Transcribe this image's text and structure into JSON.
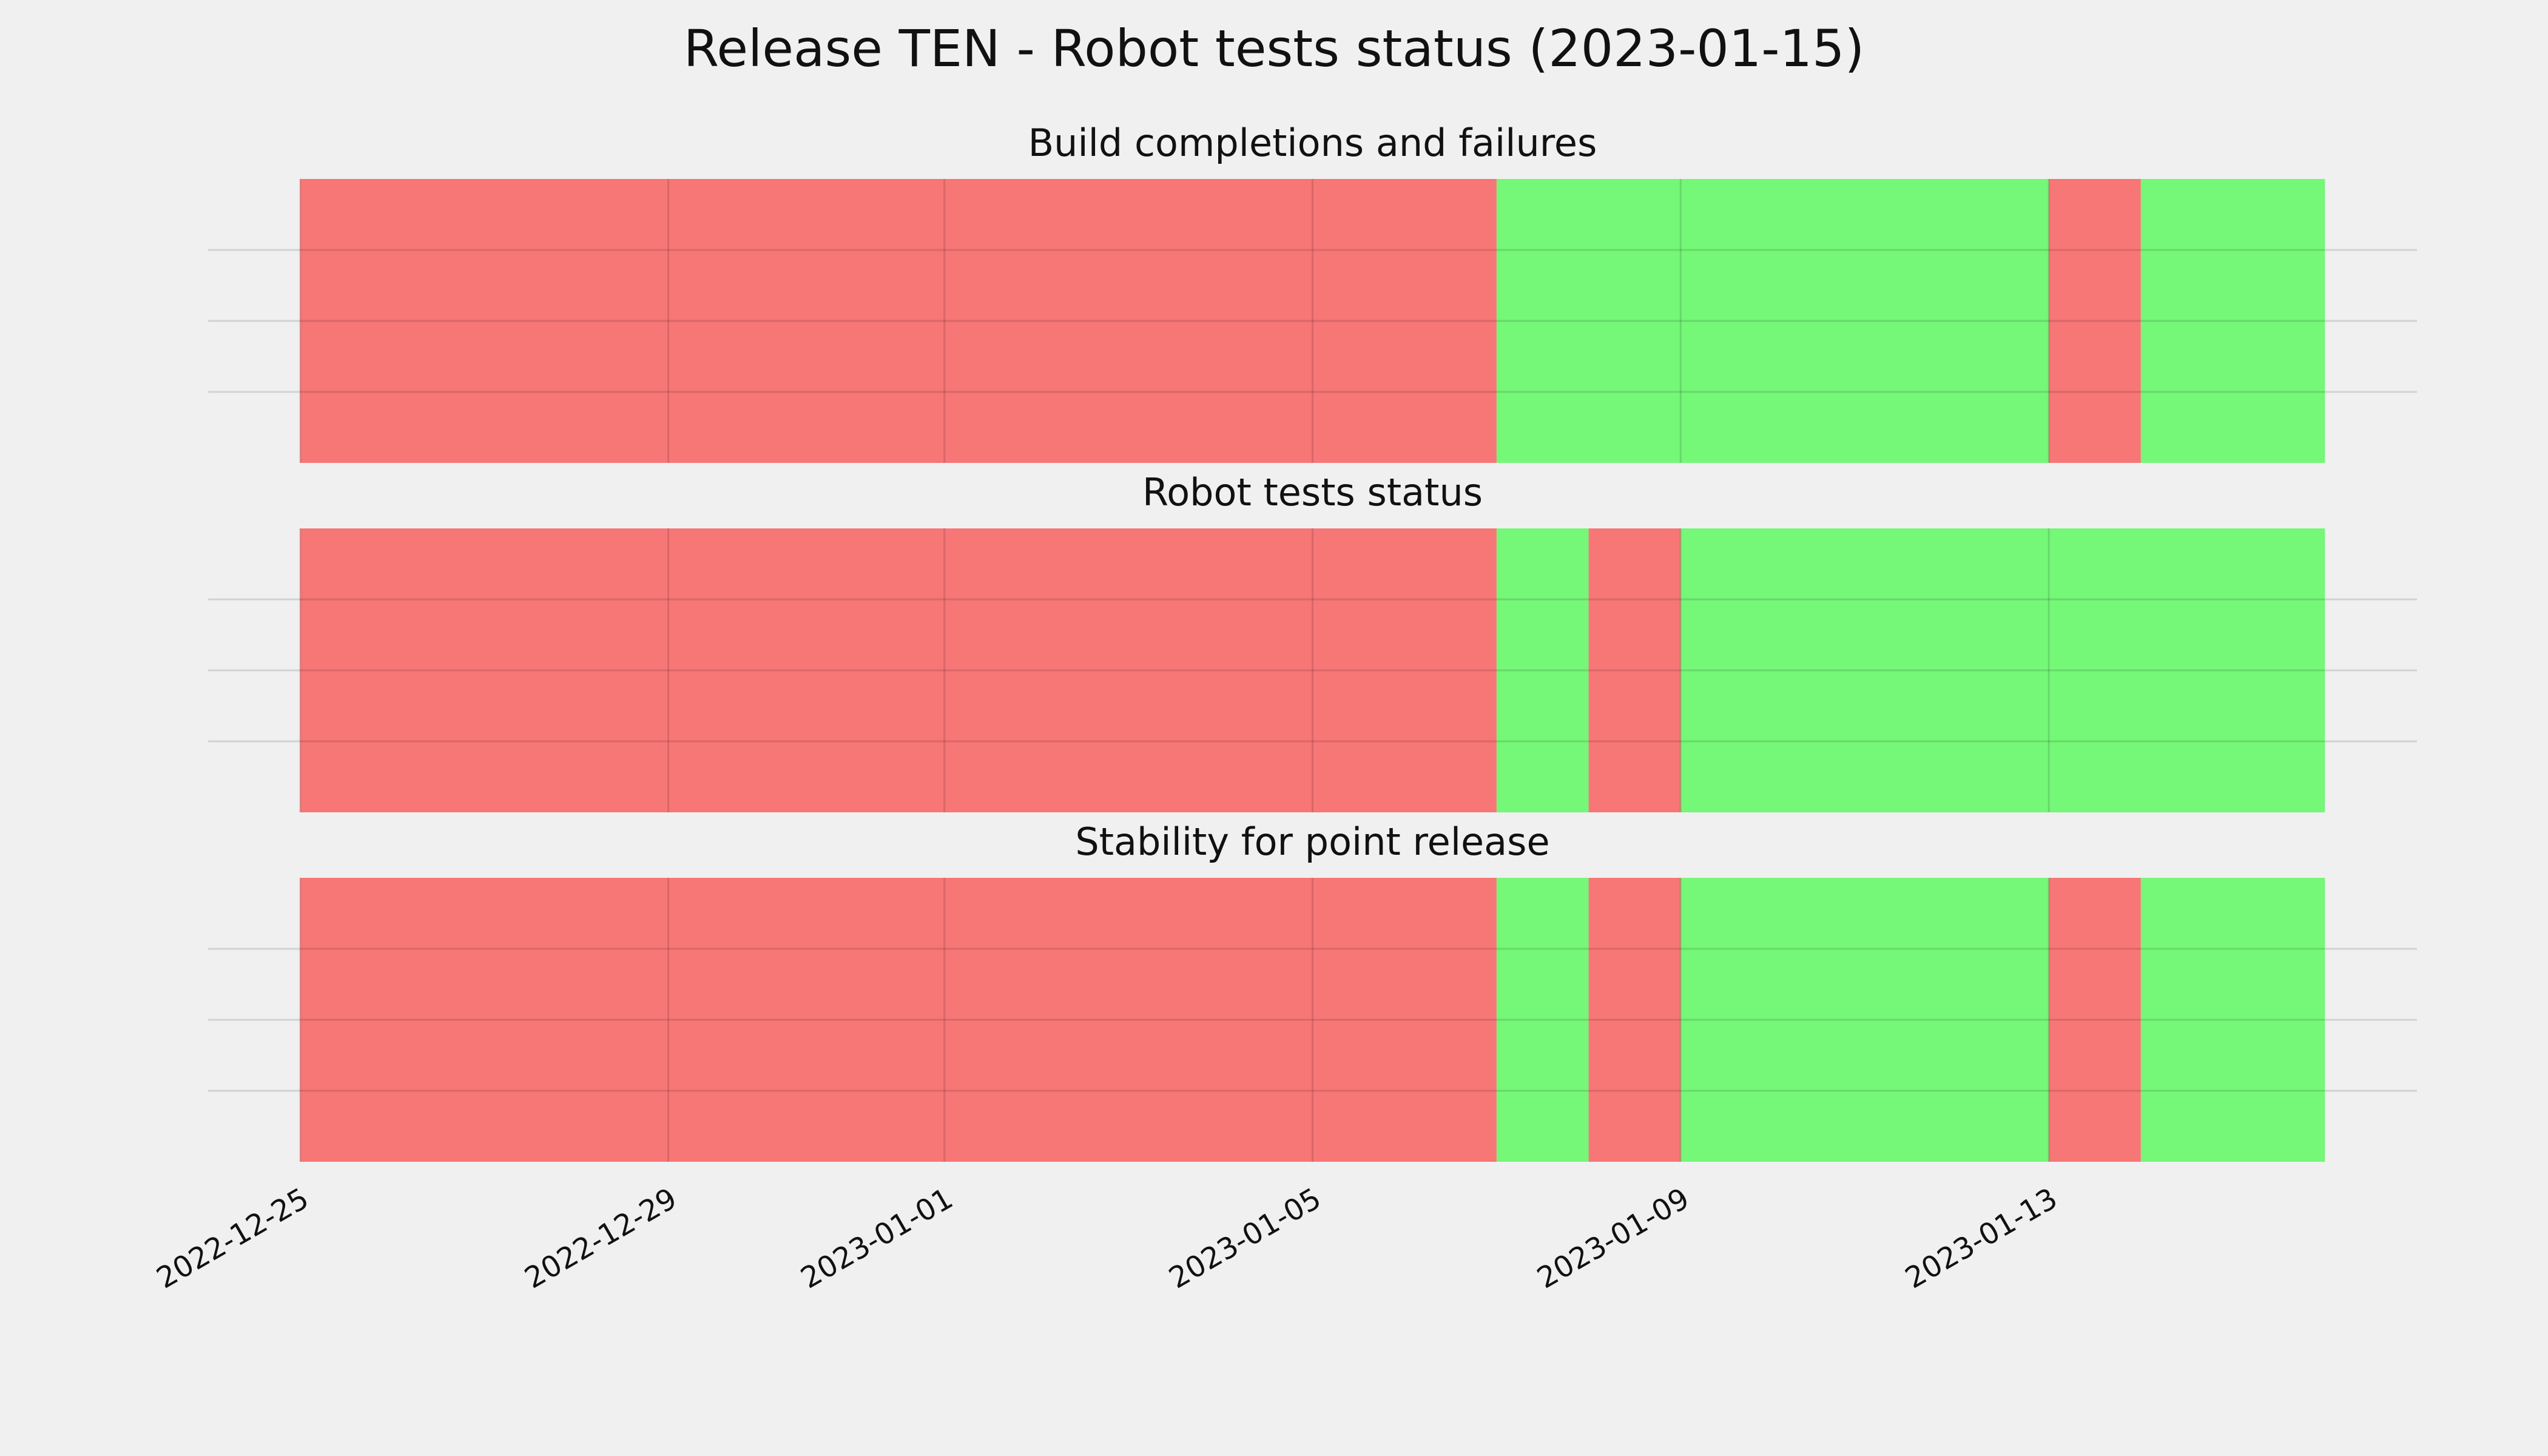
{
  "chart_data": {
    "type": "timeline",
    "title": "Release TEN - Robot tests status (2023-01-15)",
    "xlim": [
      "2022-12-24",
      "2023-01-17"
    ],
    "xticks": [
      "2022-12-25",
      "2022-12-29",
      "2023-01-01",
      "2023-01-05",
      "2023-01-09",
      "2023-01-13"
    ],
    "grid": true,
    "panels": [
      {
        "title": "Build completions and failures",
        "x": [
          "2022-12-25",
          "2023-01-07",
          "2023-01-13",
          "2023-01-14",
          "2023-01-16"
        ],
        "colors": [
          "#f77676",
          "#75f777",
          "#f77676",
          "#75f777"
        ]
      },
      {
        "title": "Robot tests status",
        "x": [
          "2022-12-25",
          "2023-01-07",
          "2023-01-08",
          "2023-01-09",
          "2023-01-16"
        ],
        "colors": [
          "#f77676",
          "#75f777",
          "#f77676",
          "#75f777"
        ]
      },
      {
        "title": "Stability for point release",
        "x": [
          "2022-12-25",
          "2023-01-07",
          "2023-01-08",
          "2023-01-09",
          "2023-01-13",
          "2023-01-14",
          "2023-01-16"
        ],
        "colors": [
          "#f77676",
          "#75f777",
          "#f77676",
          "#75f777",
          "#f77676",
          "#75f777"
        ]
      }
    ]
  }
}
